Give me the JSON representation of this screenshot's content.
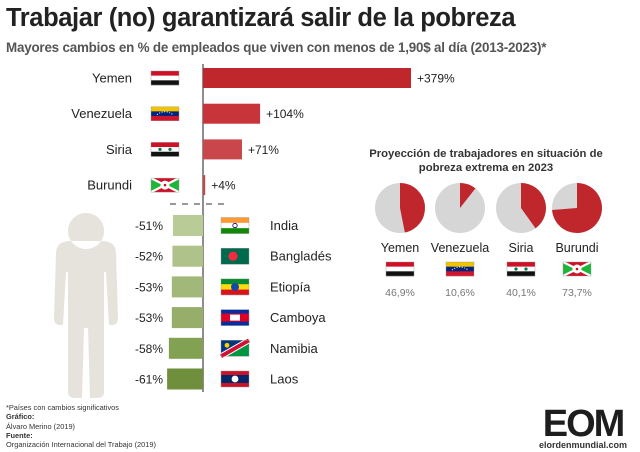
{
  "title": "Trabajar (no) garantizará salir de la pobreza",
  "subtitle": "Mayores cambios en % de empleados que viven con menos de 1,90$ al día (2013-2023)*",
  "chart_data": [
    {
      "type": "bar",
      "orientation": "horizontal",
      "categories": [
        "Yemen",
        "Venezuela",
        "Siria",
        "Burundi"
      ],
      "values": [
        379,
        104,
        71,
        4
      ],
      "value_labels": [
        "+379%",
        "+104%",
        "+71%",
        "+4%"
      ],
      "unit": "%",
      "colors": [
        "#c0272d",
        "#c7353b",
        "#c9464b",
        "#c9464b"
      ]
    },
    {
      "type": "bar",
      "orientation": "horizontal",
      "direction": "left",
      "categories": [
        "India",
        "Bangladés",
        "Etiopía",
        "Camboya",
        "Namibia",
        "Laos"
      ],
      "values": [
        -51,
        -52,
        -53,
        -53,
        -58,
        -61
      ],
      "value_labels": [
        "-51%",
        "-52%",
        "-53%",
        "-53%",
        "-58%",
        "-61%"
      ],
      "unit": "%",
      "colors": [
        "#b9cc97",
        "#aec28a",
        "#a2b87a",
        "#97ae6b",
        "#83a152",
        "#6f8f3c"
      ]
    },
    {
      "type": "pie",
      "title": "Proyección de trabajadores en situación de pobreza extrema en 2023",
      "categories": [
        "Yemen",
        "Venezuela",
        "Siria",
        "Burundi"
      ],
      "values": [
        46.9,
        10.6,
        40.1,
        73.7
      ],
      "value_labels": [
        "46,9%",
        "10,6%",
        "40,1%",
        "73,7%"
      ],
      "unit": "%",
      "colors": {
        "share": "#c0272d",
        "rest": "#d6d6d6"
      }
    }
  ],
  "footer": {
    "note": "*Países con cambios significativos",
    "grafico_label": "Gráfico:",
    "grafico": "Álvaro Merino (2019)",
    "fuente_label": "Fuente:",
    "fuente": "Organización Internacional del Trabajo (2019)"
  },
  "logo": {
    "mark": "EOM",
    "url": "elordenmundial.com"
  },
  "colors": {
    "title": "#222222",
    "subtitle": "#555555",
    "figure": "#e6e3dc",
    "axis": "#444444"
  },
  "icons": [
    "person-silhouette-icon",
    "flag-icon"
  ]
}
